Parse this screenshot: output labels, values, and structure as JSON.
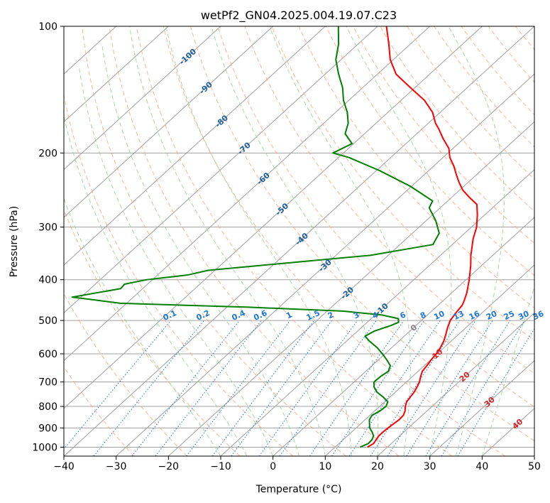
{
  "chart_data": {
    "type": "line",
    "title": "wetPf2_GN04.2025.004.19.07.C23",
    "xlabel": "Temperature (°C)",
    "ylabel": "Pressure (hPa)",
    "xlim": [
      -40,
      50
    ],
    "ylim": [
      1050,
      100
    ],
    "y_scale": "log",
    "x_ticks": [
      -40,
      -30,
      -20,
      -10,
      0,
      10,
      20,
      30,
      40,
      50
    ],
    "y_ticks": [
      100,
      200,
      300,
      400,
      500,
      600,
      700,
      800,
      900,
      1000
    ],
    "grid": true,
    "skew": true,
    "colors": {
      "temperature": "#ff0000",
      "dewpoint": "#008000",
      "isotherm": "#a0a0a0",
      "dry_adiabat": "#f4a582",
      "moist_adiabat": "#99cc99",
      "mixing_ratio": "#1f77d4",
      "isotherm_label": "#1f5fa0",
      "warm_label": "#d62728",
      "zero_label": "#808080"
    },
    "isotherm_labels": [
      "-100",
      "-90",
      "-80",
      "-70",
      "-60",
      "-50",
      "-40",
      "-30",
      "-20",
      "-10",
      "0",
      "10",
      "20",
      "30",
      "40"
    ],
    "isotherm_label_values": [
      -100,
      -90,
      -80,
      -70,
      -60,
      -50,
      -40,
      -30,
      -20,
      -10,
      0,
      10,
      20,
      30,
      40
    ],
    "mixing_ratio_labels": [
      "0.1",
      "0.2",
      "0.4",
      "0.6",
      "1",
      "1.5",
      "2",
      "3",
      "4",
      "6",
      "8",
      "10",
      "13",
      "16",
      "20",
      "25",
      "30",
      "36"
    ],
    "mixing_ratio_values": [
      0.1,
      0.2,
      0.4,
      0.6,
      1,
      1.5,
      2,
      3,
      4,
      6,
      8,
      10,
      13,
      16,
      20,
      25,
      30,
      36
    ],
    "series": [
      {
        "key": "temperature",
        "points": [
          [
            1000,
            16.2
          ],
          [
            980,
            16.6
          ],
          [
            960,
            16.3
          ],
          [
            940,
            16.0
          ],
          [
            920,
            16.0
          ],
          [
            900,
            16.1
          ],
          [
            880,
            16.3
          ],
          [
            860,
            16.5
          ],
          [
            840,
            16.4
          ],
          [
            820,
            15.8
          ],
          [
            800,
            14.9
          ],
          [
            780,
            14.2
          ],
          [
            760,
            13.9
          ],
          [
            740,
            13.6
          ],
          [
            720,
            13.1
          ],
          [
            700,
            12.5
          ],
          [
            680,
            11.6
          ],
          [
            660,
            10.8
          ],
          [
            640,
            10.5
          ],
          [
            620,
            10.1
          ],
          [
            600,
            9.8
          ],
          [
            580,
            9.3
          ],
          [
            560,
            8.6
          ],
          [
            540,
            7.6
          ],
          [
            520,
            6.5
          ],
          [
            500,
            5.5
          ],
          [
            480,
            5.0
          ],
          [
            460,
            4.6
          ],
          [
            450,
            4.1
          ],
          [
            430,
            2.9
          ],
          [
            400,
            0.6
          ],
          [
            370,
            -2.1
          ],
          [
            350,
            -4.2
          ],
          [
            320,
            -7.2
          ],
          [
            300,
            -9.0
          ],
          [
            280,
            -11.5
          ],
          [
            265,
            -13.7
          ],
          [
            255,
            -16.6
          ],
          [
            245,
            -19.4
          ],
          [
            235,
            -21.7
          ],
          [
            225,
            -23.9
          ],
          [
            215,
            -26.1
          ],
          [
            205,
            -28.7
          ],
          [
            195,
            -30.8
          ],
          [
            185,
            -33.9
          ],
          [
            175,
            -36.9
          ],
          [
            170,
            -38.6
          ],
          [
            160,
            -41.5
          ],
          [
            150,
            -45.5
          ],
          [
            140,
            -50.8
          ],
          [
            130,
            -56.4
          ],
          [
            120,
            -60.6
          ],
          [
            110,
            -64.2
          ],
          [
            100,
            -68.3
          ]
        ]
      },
      {
        "key": "dewpoint",
        "points": [
          [
            1000,
            14.8
          ],
          [
            980,
            15.6
          ],
          [
            960,
            15.5
          ],
          [
            940,
            15.0
          ],
          [
            920,
            13.9
          ],
          [
            900,
            12.6
          ],
          [
            880,
            11.7
          ],
          [
            860,
            10.8
          ],
          [
            840,
            10.4
          ],
          [
            820,
            11.0
          ],
          [
            800,
            11.2
          ],
          [
            780,
            10.6
          ],
          [
            760,
            8.7
          ],
          [
            740,
            6.5
          ],
          [
            720,
            4.9
          ],
          [
            700,
            3.8
          ],
          [
            680,
            3.9
          ],
          [
            660,
            4.3
          ],
          [
            640,
            3.5
          ],
          [
            620,
            1.6
          ],
          [
            600,
            -0.5
          ],
          [
            580,
            -2.8
          ],
          [
            560,
            -5.6
          ],
          [
            545,
            -7.5
          ],
          [
            530,
            -6.8
          ],
          [
            515,
            -4.9
          ],
          [
            505,
            -4.0
          ],
          [
            495,
            -4.8
          ],
          [
            485,
            -8.8
          ],
          [
            475,
            -17.0
          ],
          [
            465,
            -35.8
          ],
          [
            455,
            -61.2
          ],
          [
            440,
            -71.7
          ],
          [
            420,
            -64.2
          ],
          [
            410,
            -64.4
          ],
          [
            400,
            -61.1
          ],
          [
            390,
            -54.3
          ],
          [
            380,
            -51.3
          ],
          [
            350,
            -23.4
          ],
          [
            330,
            -13.7
          ],
          [
            310,
            -14.9
          ],
          [
            290,
            -18.1
          ],
          [
            270,
            -22.1
          ],
          [
            260,
            -22.9
          ],
          [
            240,
            -30.2
          ],
          [
            220,
            -39.5
          ],
          [
            205,
            -48.0
          ],
          [
            200,
            -52.0
          ],
          [
            190,
            -50.3
          ],
          [
            180,
            -53.7
          ],
          [
            170,
            -55.3
          ],
          [
            160,
            -57.8
          ],
          [
            150,
            -61.0
          ],
          [
            140,
            -63.8
          ],
          [
            130,
            -67.4
          ],
          [
            120,
            -71.0
          ],
          [
            110,
            -73.8
          ],
          [
            100,
            -77.5
          ]
        ]
      }
    ]
  }
}
